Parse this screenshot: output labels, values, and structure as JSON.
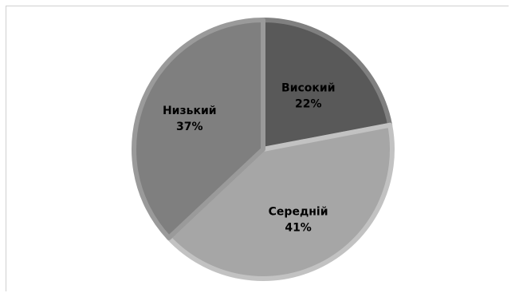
{
  "chart_data": {
    "type": "pie",
    "title": "",
    "slices": [
      {
        "label": "Високий",
        "value": 22,
        "value_text": "22%",
        "color": "#595959",
        "edge": "#808080"
      },
      {
        "label": "Середній",
        "value": 41,
        "value_text": "41%",
        "color": "#a6a6a6",
        "edge": "#c2c2c2"
      },
      {
        "label": "Низький",
        "value": 37,
        "value_text": "37%",
        "color": "#7f7f7f",
        "edge": "#9a9a9a"
      }
    ],
    "start_angle_deg": 0,
    "direction": "clockwise",
    "legend": "none",
    "data_labels": "inside"
  }
}
